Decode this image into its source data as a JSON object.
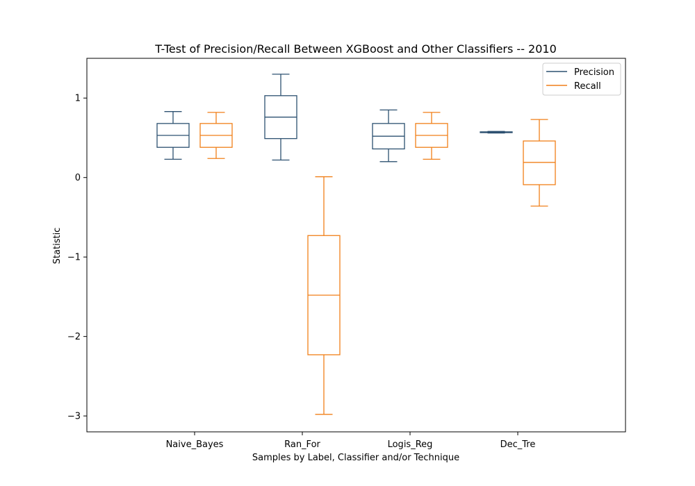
{
  "chart_data": {
    "type": "box",
    "title": "T-Test of Precision/Recall Between XGBoost and Other Classifiers -- 2010",
    "xlabel": "Samples by Label, Classifier and/or Technique",
    "ylabel": "Statistic",
    "ylim": [
      -3.2,
      1.5
    ],
    "yticks": [
      1,
      0,
      -1,
      -2,
      -3
    ],
    "ytick_labels": [
      "1",
      "0",
      "−1",
      "−2",
      "−3"
    ],
    "categories": [
      "Naive_Bayes",
      "Ran_For",
      "Logis_Reg",
      "Dec_Tre"
    ],
    "legend_position": "top-right",
    "grid": false,
    "series": [
      {
        "name": "Precision",
        "color": "#2c5070",
        "boxes": [
          {
            "whislo": 0.23,
            "q1": 0.38,
            "med": 0.53,
            "q3": 0.68,
            "whishi": 0.83
          },
          {
            "whislo": 0.22,
            "q1": 0.49,
            "med": 0.76,
            "q3": 1.03,
            "whishi": 1.3
          },
          {
            "whislo": 0.2,
            "q1": 0.36,
            "med": 0.52,
            "q3": 0.68,
            "whishi": 0.85
          },
          {
            "whislo": 0.56,
            "q1": 0.565,
            "med": 0.57,
            "q3": 0.575,
            "whishi": 0.58
          }
        ]
      },
      {
        "name": "Recall",
        "color": "#f07f18",
        "boxes": [
          {
            "whislo": 0.24,
            "q1": 0.38,
            "med": 0.53,
            "q3": 0.68,
            "whishi": 0.82
          },
          {
            "whislo": -2.98,
            "q1": -2.23,
            "med": -1.48,
            "q3": -0.73,
            "whishi": 0.01
          },
          {
            "whislo": 0.23,
            "q1": 0.38,
            "med": 0.53,
            "q3": 0.68,
            "whishi": 0.82
          },
          {
            "whislo": -0.36,
            "q1": -0.09,
            "med": 0.19,
            "q3": 0.46,
            "whishi": 0.73
          }
        ]
      }
    ]
  }
}
